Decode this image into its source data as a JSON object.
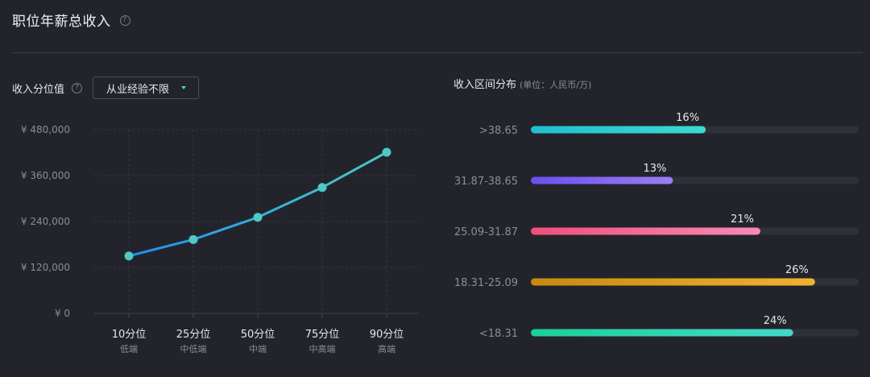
{
  "header": {
    "title": "职位年薪总收入",
    "help": "?"
  },
  "left": {
    "label": "收入分位值",
    "help": "?",
    "select": {
      "value": "从业经验不限"
    }
  },
  "right": {
    "title": "收入区间分布",
    "unit": "(单位：人民币/万)"
  },
  "colors": {
    "background": "#23242b",
    "line_start": "#1e8ff0",
    "line_end": "#4ac9c4",
    "track": "#2f3139"
  },
  "chart_data": [
    {
      "type": "line",
      "categories": [
        "10分位",
        "25分位",
        "50分位",
        "75分位",
        "90分位"
      ],
      "sublabels": [
        "低端",
        "中低端",
        "中端",
        "中高端",
        "高端"
      ],
      "values": [
        150000,
        193000,
        251000,
        329000,
        421000
      ],
      "yticks": [
        "¥ 0",
        "¥ 120,000",
        "¥ 240,000",
        "¥ 360,000",
        "¥ 480,000"
      ],
      "ylim": [
        0,
        480000
      ],
      "grid": true
    },
    {
      "type": "bar",
      "orientation": "horizontal",
      "categories": [
        ">38.65",
        "31.87-38.65",
        "25.09-31.87",
        "18.31-25.09",
        "<18.31"
      ],
      "values": [
        16,
        13,
        21,
        26,
        24
      ],
      "labels": [
        "16%",
        "13%",
        "21%",
        "26%",
        "24%"
      ],
      "xlim": [
        0,
        30
      ],
      "colors": [
        [
          "#1fbfcf",
          "#3dd9d1"
        ],
        [
          "#6a4ff0",
          "#9d7cf4"
        ],
        [
          "#f0507a",
          "#f78ab5"
        ],
        [
          "#c78a10",
          "#f2b230"
        ],
        [
          "#1ccf98",
          "#44d9c8"
        ]
      ]
    }
  ]
}
